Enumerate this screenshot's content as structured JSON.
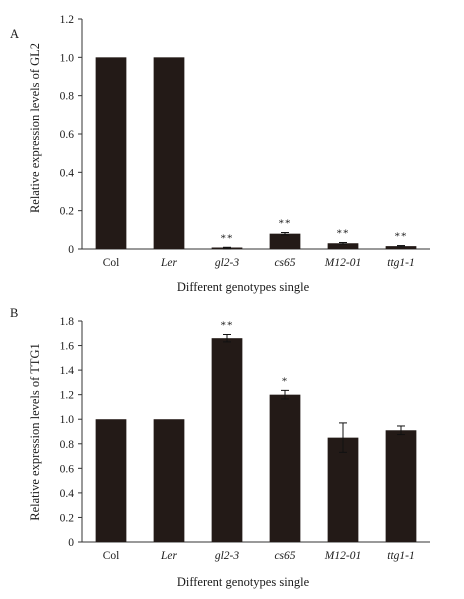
{
  "bar_color": "#231a17",
  "chart_data": [
    {
      "panel_label": "A",
      "type": "bar",
      "categories": [
        "Col",
        "Ler",
        "gl2-3",
        "cs65",
        "M12-01",
        "ttg1-1"
      ],
      "italic_categories": [
        false,
        true,
        true,
        true,
        true,
        true
      ],
      "values": [
        1.0,
        1.0,
        0.005,
        0.08,
        0.03,
        0.015
      ],
      "errors": [
        0,
        0,
        0.004,
        0.006,
        0.004,
        0.003
      ],
      "significance": [
        "",
        "",
        "**",
        "**",
        "**",
        "**"
      ],
      "xlabel": "Different genotypes single",
      "ylabel": "Relative expression levels of GL2",
      "ylim": [
        0,
        1.2
      ],
      "yticks": [
        "0",
        "0.2",
        "0.4",
        "0.6",
        "0.8",
        "1.0",
        "1.2"
      ],
      "ytick_values": [
        0,
        0.2,
        0.4,
        0.6,
        0.8,
        1.0,
        1.2
      ]
    },
    {
      "panel_label": "B",
      "type": "bar",
      "categories": [
        "Col",
        "Ler",
        "gl2-3",
        "cs65",
        "M12-01",
        "ttg1-1"
      ],
      "italic_categories": [
        false,
        true,
        true,
        true,
        true,
        true
      ],
      "values": [
        1.0,
        1.0,
        1.66,
        1.2,
        0.85,
        0.91
      ],
      "errors": [
        0,
        0,
        0.03,
        0.035,
        0.12,
        0.035
      ],
      "significance": [
        "",
        "",
        "**",
        "*",
        "",
        ""
      ],
      "xlabel": "Different genotypes single",
      "ylabel": "Relative expression levels of TTG1",
      "ylim": [
        0,
        1.8
      ],
      "yticks": [
        "0",
        "0.2",
        "0.4",
        "0.6",
        "0.8",
        "1.0",
        "1.2",
        "1.4",
        "1.6",
        "1.8"
      ],
      "ytick_values": [
        0,
        0.2,
        0.4,
        0.6,
        0.8,
        1.0,
        1.2,
        1.4,
        1.6,
        1.8
      ]
    }
  ]
}
